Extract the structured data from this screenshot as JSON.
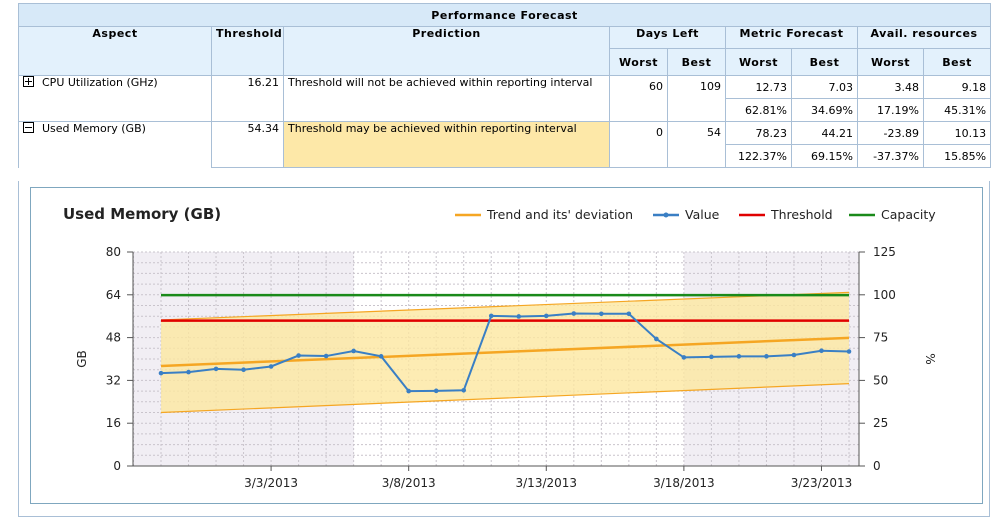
{
  "table": {
    "title": "Performance Forecast",
    "headers": {
      "aspect": "Aspect",
      "threshold": "Threshold",
      "prediction": "Prediction",
      "days_left": "Days Left",
      "metric_forecast": "Metric Forecast",
      "avail_resources": "Avail. resources",
      "worst": "Worst",
      "best": "Best"
    },
    "rows": [
      {
        "toggle": "expand",
        "aspect": "CPU Utilization (GHz)",
        "threshold": "16.21",
        "prediction": "Threshold will not be achieved within reporting interval",
        "days_worst": "60",
        "days_best": "109",
        "metric_worst": "12.73",
        "metric_best": "7.03",
        "metric_worst_pct": "62.81%",
        "metric_best_pct": "34.69%",
        "avail_worst": "3.48",
        "avail_best": "9.18",
        "avail_worst_pct": "17.19%",
        "avail_best_pct": "45.31%"
      },
      {
        "toggle": "collapse",
        "aspect": "Used Memory (GB)",
        "threshold": "54.34",
        "prediction": "Threshold may be achieved within reporting interval",
        "days_worst": "0",
        "days_best": "54",
        "metric_worst": "78.23",
        "metric_best": "44.21",
        "metric_worst_pct": "122.37%",
        "metric_best_pct": "69.15%",
        "avail_worst": "-23.89",
        "avail_best": "10.13",
        "avail_worst_pct": "-37.37%",
        "avail_best_pct": "15.85%"
      }
    ]
  },
  "chart_data": {
    "type": "line",
    "title": "Used Memory (GB)",
    "ylabel": "GB",
    "y2label": "%",
    "ylim": [
      0,
      80
    ],
    "yticks": [
      0,
      16,
      32,
      48,
      64,
      80
    ],
    "y2lim": [
      0,
      125
    ],
    "y2ticks": [
      0,
      25,
      50,
      75,
      100,
      125
    ],
    "x_day_range": [
      0,
      26
    ],
    "xticks": [
      {
        "day": 4,
        "label": "3/3/2013"
      },
      {
        "day": 9,
        "label": "3/8/2013"
      },
      {
        "day": 14,
        "label": "3/13/2013"
      },
      {
        "day": 19,
        "label": "3/18/2013"
      },
      {
        "day": 24,
        "label": "3/23/2013"
      }
    ],
    "legend": [
      {
        "name": "Trend and its' deviation",
        "color": "#f5a623",
        "marker": false
      },
      {
        "name": "Value",
        "color": "#3a7fc4",
        "marker": true
      },
      {
        "name": "Threshold",
        "color": "#e00000",
        "marker": false
      },
      {
        "name": "Capacity",
        "color": "#1a8a1a",
        "marker": false
      }
    ],
    "series": {
      "value": {
        "name": "Value",
        "color": "#3a7fc4",
        "days": [
          0,
          1,
          2,
          3,
          4,
          5,
          6,
          7,
          8,
          9,
          10,
          11,
          12,
          13,
          14,
          15,
          16,
          17,
          18,
          19,
          20,
          21,
          22,
          23,
          24,
          25
        ],
        "values": [
          34.7,
          35.1,
          36.3,
          36.0,
          37.2,
          41.3,
          41.1,
          43.0,
          41.0,
          28.0,
          28.1,
          28.3,
          56.1,
          55.9,
          56.1,
          57.0,
          56.9,
          56.9,
          47.5,
          40.6,
          40.8,
          41.0,
          41.0,
          41.5,
          43.1,
          42.8
        ]
      },
      "trend": {
        "name": "Trend",
        "color": "#f5a623",
        "start": 37.4,
        "end": 47.9
      },
      "trend_upper": {
        "start": 54.6,
        "end": 64.9
      },
      "trend_lower": {
        "start": 20.0,
        "end": 30.8
      },
      "threshold": {
        "name": "Threshold",
        "color": "#e00000",
        "value": 54.34
      },
      "capacity": {
        "name": "Capacity",
        "color": "#1a8a1a",
        "value": 63.9
      }
    },
    "shaded_day_ranges": [
      [
        0,
        7
      ],
      [
        20,
        26
      ]
    ]
  }
}
